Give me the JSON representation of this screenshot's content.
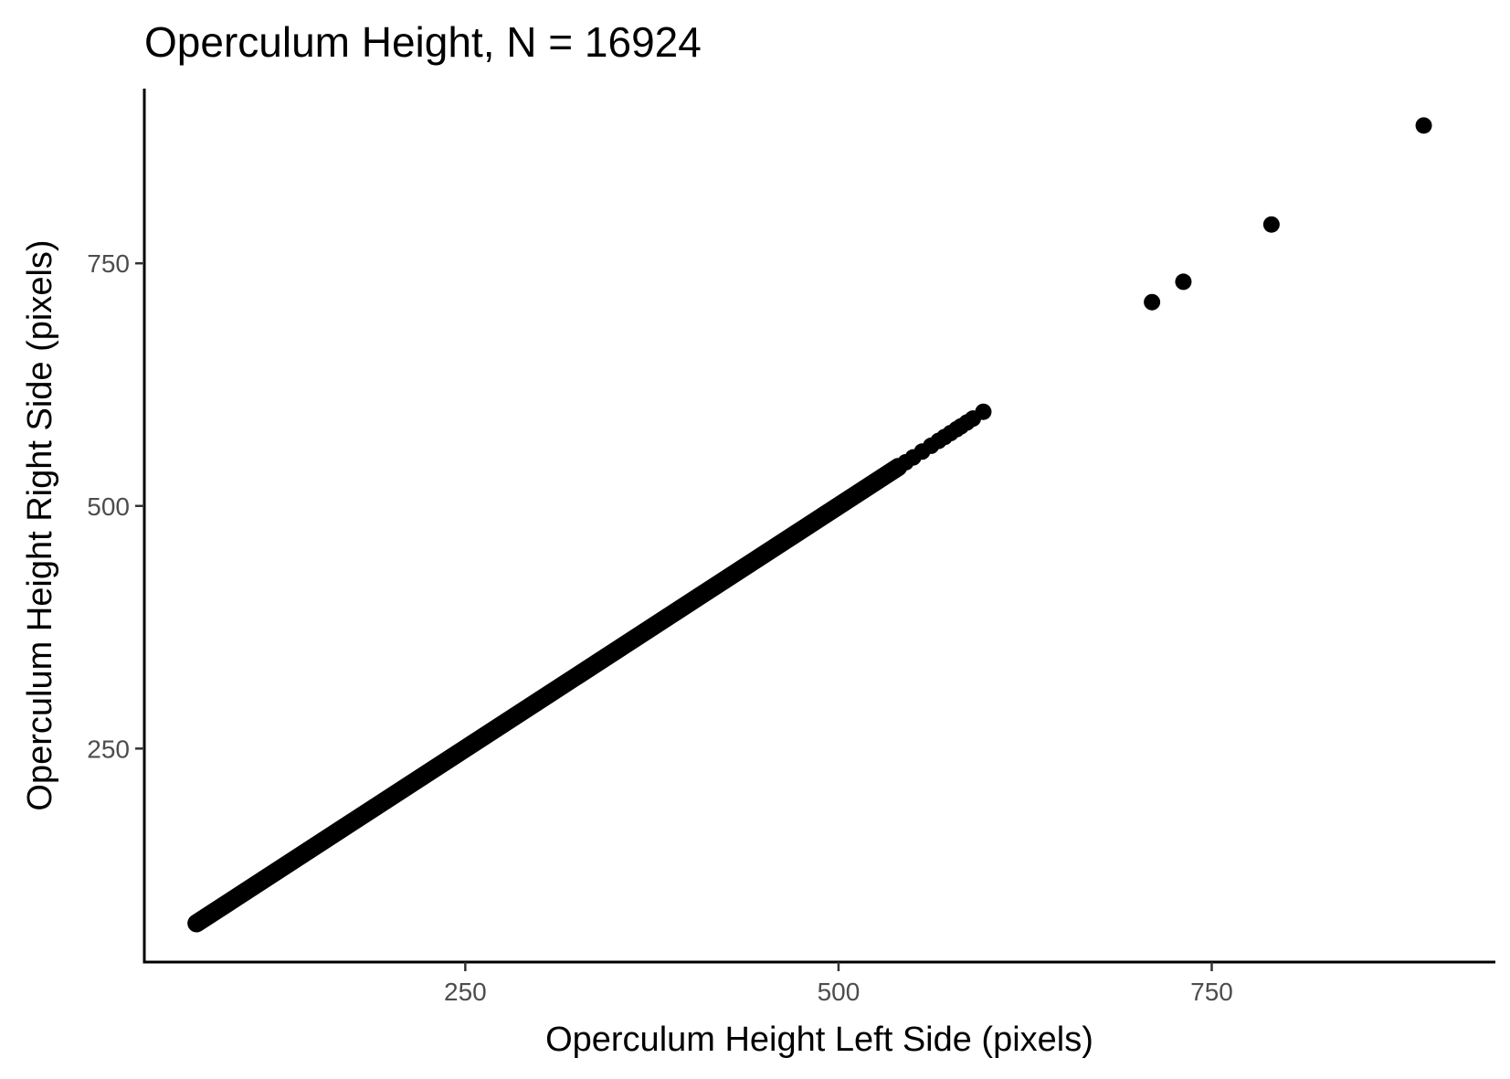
{
  "chart_data": {
    "type": "scatter",
    "title": "Operculum Height, N = 16924",
    "xlabel": "Operculum Height Left Side (pixels)",
    "ylabel": "Operculum Height Right Side (pixels)",
    "xlim": [
      35,
      940
    ],
    "ylim": [
      30,
      930
    ],
    "xticks": [
      250,
      500,
      750
    ],
    "yticks": [
      250,
      500,
      750
    ],
    "grid": false,
    "point_color": "#000000",
    "diagonal_band": {
      "x_start": 70,
      "x_end": 540
    },
    "points": [
      {
        "x": 70,
        "y": 70
      },
      {
        "x": 82,
        "y": 82
      },
      {
        "x": 545,
        "y": 545
      },
      {
        "x": 550,
        "y": 550
      },
      {
        "x": 556,
        "y": 556
      },
      {
        "x": 562,
        "y": 562
      },
      {
        "x": 567,
        "y": 567
      },
      {
        "x": 571,
        "y": 571
      },
      {
        "x": 575,
        "y": 575
      },
      {
        "x": 579,
        "y": 579
      },
      {
        "x": 582,
        "y": 582
      },
      {
        "x": 586,
        "y": 586
      },
      {
        "x": 590,
        "y": 590
      },
      {
        "x": 597,
        "y": 597
      },
      {
        "x": 710,
        "y": 710
      },
      {
        "x": 731,
        "y": 731
      },
      {
        "x": 790,
        "y": 790
      },
      {
        "x": 892,
        "y": 892
      }
    ]
  }
}
